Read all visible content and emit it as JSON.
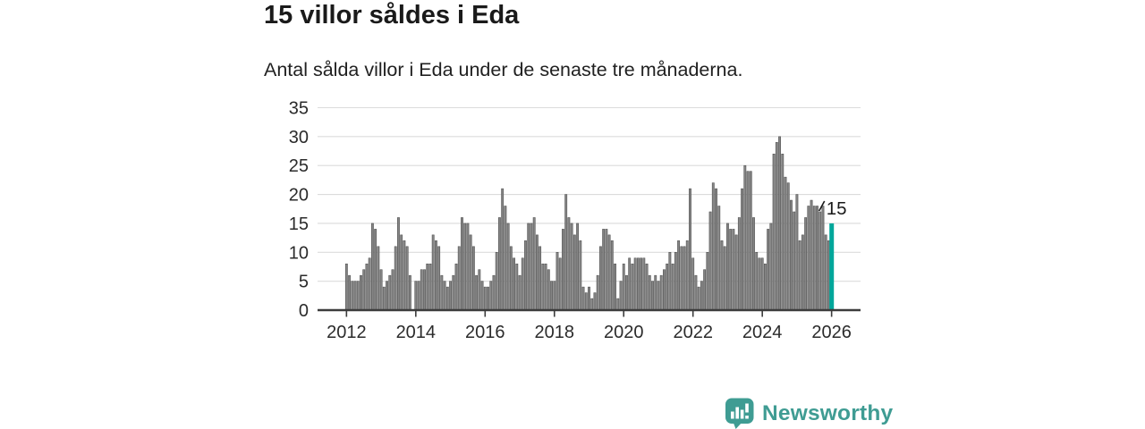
{
  "header": {
    "title": "15 villor såldes i Eda",
    "subtitle": "Antal sålda villor i Eda under de senaste tre månaderna."
  },
  "chart_data": {
    "type": "bar",
    "title": "15 villor såldes i Eda",
    "subtitle": "Antal sålda villor i Eda under de senaste tre månaderna.",
    "x_start_month": "2012-01",
    "x_end_month": "2026-01",
    "monthly_values": [
      8,
      6,
      5,
      5,
      5,
      6,
      7,
      8,
      9,
      15,
      14,
      11,
      7,
      4,
      5,
      6,
      7,
      11,
      16,
      13,
      12,
      11,
      6,
      0,
      5,
      5,
      7,
      7,
      8,
      8,
      13,
      12,
      11,
      6,
      5,
      4,
      5,
      6,
      8,
      11,
      16,
      15,
      15,
      13,
      11,
      6,
      7,
      5,
      4,
      4,
      5,
      6,
      10,
      16,
      21,
      18,
      15,
      11,
      9,
      8,
      6,
      9,
      12,
      15,
      15,
      16,
      13,
      11,
      8,
      8,
      7,
      5,
      5,
      10,
      9,
      14,
      20,
      16,
      15,
      13,
      15,
      12,
      4,
      3,
      4,
      2,
      3,
      6,
      11,
      14,
      14,
      13,
      12,
      8,
      2,
      5,
      8,
      6,
      9,
      8,
      9,
      9,
      9,
      9,
      8,
      6,
      5,
      6,
      5,
      6,
      7,
      8,
      10,
      8,
      10,
      12,
      11,
      11,
      12,
      21,
      9,
      6,
      4,
      5,
      7,
      10,
      17,
      22,
      21,
      18,
      12,
      11,
      15,
      14,
      14,
      13,
      16,
      21,
      25,
      24,
      24,
      16,
      10,
      9,
      9,
      8,
      14,
      15,
      27,
      29,
      30,
      27,
      23,
      22,
      19,
      17,
      20,
      12,
      13,
      16,
      18,
      19,
      18,
      18,
      17,
      18,
      13,
      12
    ],
    "highlight_bar": {
      "date": "2026-01",
      "value": 15,
      "label": "15",
      "color": "#00a79b"
    },
    "bar_color": "#858585",
    "bar_stroke": "#4f4f4f",
    "y_ticks": [
      0,
      5,
      10,
      15,
      20,
      25,
      30,
      35
    ],
    "ylim": [
      0,
      35
    ],
    "x_tick_years": [
      2012,
      2014,
      2016,
      2018,
      2020,
      2022,
      2024,
      2026
    ],
    "grid": true,
    "gridline_color": "#dbdbdb",
    "baseline_color": "#3c3c3c",
    "axis_text_color": "#2b2b2b",
    "annotation_color": "#1a1a1a",
    "legend_position": "none"
  },
  "footer": {
    "brand": "Newsworthy",
    "brand_color": "#3f9c93",
    "logo_icon": "bar-chart-speech-bubble-icon"
  }
}
